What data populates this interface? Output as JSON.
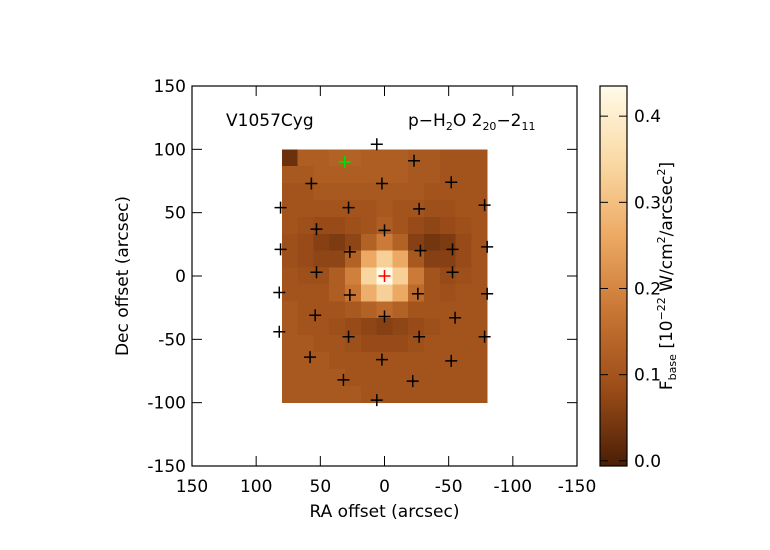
{
  "chart_data": {
    "type": "heatmap",
    "xlabel": "RA offset (arcsec)",
    "ylabel": "Dec offset (arcsec)",
    "source": "V1057Cyg",
    "annotation": [
      {
        "text": "p−H"
      },
      {
        "text": "2",
        "shift": "sub"
      },
      {
        "text": "O 2"
      },
      {
        "text": "20",
        "shift": "sub"
      },
      {
        "text": "−2"
      },
      {
        "text": "11",
        "shift": "sub"
      }
    ],
    "colorbar_label": [
      {
        "text": "F"
      },
      {
        "text": "base",
        "shift": "sub"
      },
      {
        "text": " [10"
      },
      {
        "text": "−22",
        "shift": "sup"
      },
      {
        "text": " W/cm"
      },
      {
        "text": "2",
        "shift": "sup"
      },
      {
        "text": "/arcsec"
      },
      {
        "text": "2",
        "shift": "sup"
      },
      {
        "text": "]"
      }
    ],
    "xlim": [
      150,
      -150
    ],
    "xticks": [
      150,
      100,
      50,
      0,
      -50,
      -100,
      -150
    ],
    "ylim": [
      -150,
      150
    ],
    "yticks": [
      -150,
      -100,
      -50,
      0,
      50,
      100,
      150
    ],
    "image_extent": {
      "x": [
        80,
        -80
      ],
      "y": [
        100,
        -100
      ]
    },
    "zlim": [
      -0.006,
      0.435
    ],
    "zticks": [
      {
        "value": 0,
        "label": "0.0"
      },
      0.1,
      0.2,
      0.3,
      0.4
    ],
    "colormap": [
      "#4a1e06",
      "#9a4c18",
      "#c87432",
      "#eca862",
      "#fad9a4",
      "#fffbe8"
    ],
    "z": [
      [
        0.03,
        0.12,
        0.12,
        0.13,
        0.13,
        0.12,
        0.12,
        0.12,
        0.11,
        0.11,
        0.1,
        0.1,
        0.1
      ],
      [
        0.11,
        0.11,
        0.12,
        0.12,
        0.12,
        0.12,
        0.12,
        0.12,
        0.11,
        0.11,
        0.1,
        0.1,
        0.1
      ],
      [
        0.1,
        0.1,
        0.11,
        0.11,
        0.11,
        0.11,
        0.11,
        0.11,
        0.11,
        0.1,
        0.1,
        0.1,
        0.1
      ],
      [
        0.1,
        0.1,
        0.1,
        0.1,
        0.1,
        0.1,
        0.11,
        0.1,
        0.1,
        0.09,
        0.09,
        0.1,
        0.1
      ],
      [
        0.1,
        0.09,
        0.08,
        0.08,
        0.09,
        0.1,
        0.12,
        0.1,
        0.08,
        0.07,
        0.08,
        0.09,
        0.1
      ],
      [
        0.09,
        0.08,
        0.06,
        0.05,
        0.07,
        0.13,
        0.18,
        0.13,
        0.06,
        0.04,
        0.05,
        0.08,
        0.1
      ],
      [
        0.09,
        0.08,
        0.07,
        0.07,
        0.13,
        0.26,
        0.33,
        0.26,
        0.11,
        0.06,
        0.06,
        0.08,
        0.1
      ],
      [
        0.1,
        0.09,
        0.09,
        0.12,
        0.19,
        0.34,
        0.43,
        0.33,
        0.18,
        0.1,
        0.08,
        0.09,
        0.1
      ],
      [
        0.1,
        0.1,
        0.1,
        0.12,
        0.17,
        0.27,
        0.33,
        0.26,
        0.15,
        0.1,
        0.09,
        0.1,
        0.1
      ],
      [
        0.11,
        0.1,
        0.1,
        0.1,
        0.11,
        0.13,
        0.15,
        0.13,
        0.1,
        0.1,
        0.1,
        0.1,
        0.1
      ],
      [
        0.11,
        0.1,
        0.1,
        0.09,
        0.08,
        0.07,
        0.06,
        0.07,
        0.08,
        0.09,
        0.1,
        0.1,
        0.1
      ],
      [
        0.11,
        0.11,
        0.1,
        0.1,
        0.09,
        0.08,
        0.08,
        0.08,
        0.09,
        0.1,
        0.1,
        0.1,
        0.1
      ],
      [
        0.11,
        0.11,
        0.11,
        0.1,
        0.1,
        0.1,
        0.1,
        0.1,
        0.1,
        0.1,
        0.1,
        0.1,
        0.1
      ],
      [
        0.11,
        0.11,
        0.11,
        0.11,
        0.1,
        0.1,
        0.1,
        0.1,
        0.1,
        0.1,
        0.1,
        0.1,
        0.1
      ],
      [
        0.11,
        0.11,
        0.11,
        0.11,
        0.11,
        0.1,
        0.1,
        0.1,
        0.1,
        0.1,
        0.1,
        0.1,
        0.1
      ]
    ],
    "series": [
      {
        "color": "#000000",
        "x": [
          6,
          -23,
          57,
          2,
          -52,
          81,
          28,
          -27,
          -78,
          53,
          0,
          -53,
          81,
          27,
          -28,
          -80,
          53,
          -53,
          82,
          27,
          -26,
          -80,
          54,
          0,
          -55,
          82,
          28,
          -27,
          -78,
          58,
          2,
          -52,
          32,
          -22,
          6
        ],
        "y": [
          104,
          91,
          73,
          73,
          74,
          54,
          54,
          53,
          56,
          37,
          36,
          21,
          21,
          19,
          20,
          23,
          3,
          3,
          -13,
          -15,
          -14,
          -14,
          -31,
          -32,
          -33,
          -44,
          -48,
          -48,
          -48,
          -64,
          -66,
          -67,
          -82,
          -83,
          -98
        ]
      },
      {
        "color": "#00e000",
        "x": [
          31
        ],
        "y": [
          90
        ]
      },
      {
        "color": "#ff0000",
        "x": [
          0
        ],
        "y": [
          0
        ]
      }
    ]
  }
}
